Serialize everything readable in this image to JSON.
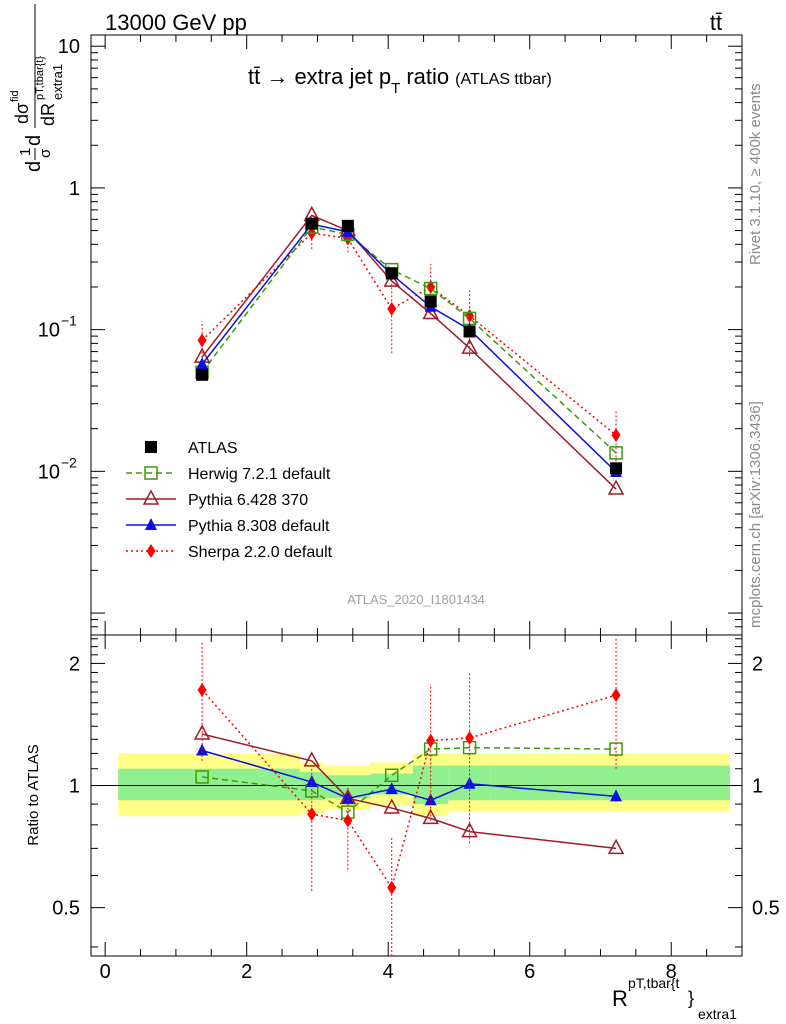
{
  "header": {
    "left": "13000 GeV pp",
    "right": "tt̄"
  },
  "title": {
    "main": "tt̄ → extra jet p",
    "sub": "T",
    "tail": " ratio",
    "small": "(ATLAS ttbar)"
  },
  "side_labels": {
    "rivet": "Rivet 3.1.10, ≥ 400k events",
    "mcplots": "mcplots.cern.ch [arXiv:1306.3436]"
  },
  "watermark": "ATLAS_2020_I1801434",
  "axes": {
    "y_main": {
      "pre": "d",
      "frac_num": "1",
      "frac_den": "σ",
      "d": "d",
      "num": "dσ",
      "num_sup": "fid",
      "den": "dR",
      "den_sup": "pT,tbar{t}",
      "den_sub": "extra1"
    },
    "y_ratio": "Ratio to ATLAS",
    "x": {
      "main": "R",
      "sup": "pT,tbar{t",
      "brace": "}",
      "sub": "extra1"
    }
  },
  "chart_data": [
    {
      "type": "scatter",
      "panel": "main",
      "log_y": true,
      "xlim": [
        -0.2,
        9.0
      ],
      "ylim": [
        0.0007,
        12
      ],
      "x_ticks": [
        0,
        2,
        4,
        6,
        8
      ],
      "y_ticks": [
        {
          "value": 10,
          "label": "10",
          "exp": ""
        },
        {
          "value": 1,
          "label": "1",
          "exp": ""
        },
        {
          "value": 0.1,
          "label": "10",
          "exp": "−1"
        },
        {
          "value": 0.01,
          "label": "10",
          "exp": "−2"
        }
      ],
      "legend_position": "lower-left",
      "series": [
        {
          "name": "ATLAS",
          "key": "atlas",
          "color": "#000000",
          "marker": "square-filled",
          "line": "none",
          "x": [
            1.37,
            2.92,
            3.43,
            4.05,
            4.6,
            5.15,
            7.22
          ],
          "y": [
            0.048,
            0.56,
            0.54,
            0.25,
            0.158,
            0.097,
            0.0105
          ],
          "bin_edges": [
            0.0,
            2.75,
            3.1,
            3.75,
            4.35,
            4.85,
            5.45,
            9.0
          ]
        },
        {
          "name": "Herwig 7.2.1 default",
          "key": "herwig",
          "color": "#3a9a0a",
          "marker": "square-open",
          "line": "dashed",
          "x": [
            1.37,
            2.92,
            3.43,
            4.05,
            4.6,
            5.15,
            7.22
          ],
          "y": [
            0.05,
            0.53,
            0.47,
            0.265,
            0.195,
            0.12,
            0.0135
          ]
        },
        {
          "name": "Pythia 6.428 370",
          "key": "pythia6",
          "color": "#a01a2a",
          "marker": "triangle-open",
          "line": "solid",
          "x": [
            1.37,
            2.92,
            3.43,
            4.05,
            4.6,
            5.15,
            7.22
          ],
          "y": [
            0.064,
            0.64,
            0.5,
            0.22,
            0.13,
            0.074,
            0.0075
          ]
        },
        {
          "name": "Pythia 8.308 default",
          "key": "pythia8",
          "color": "#0a10e0",
          "marker": "triangle-filled",
          "line": "solid",
          "x": [
            1.37,
            2.92,
            3.43,
            4.05,
            4.6,
            5.15,
            7.22
          ],
          "y": [
            0.057,
            0.555,
            0.49,
            0.245,
            0.145,
            0.1,
            0.0099
          ]
        },
        {
          "name": "Sherpa 2.2.0 default",
          "key": "sherpa",
          "color": "#ff0000",
          "marker": "diamond-filled",
          "line": "dotted",
          "x": [
            1.37,
            2.92,
            3.43,
            4.05,
            4.6,
            5.15,
            7.22
          ],
          "y": [
            0.084,
            0.48,
            0.44,
            0.14,
            0.2,
            0.125,
            0.018
          ],
          "err_low": [
            0.052,
            0.37,
            0.35,
            0.068,
            0.13,
            0.065,
            0.011
          ],
          "err_high": [
            0.115,
            0.59,
            0.53,
            0.23,
            0.29,
            0.19,
            0.027
          ]
        }
      ]
    },
    {
      "type": "scatter",
      "panel": "ratio",
      "ylim": [
        0.38,
        2.35
      ],
      "y_mapping": "log",
      "x_ticks": [
        0,
        2,
        4,
        6,
        8
      ],
      "y_ticks": [
        0.5,
        1,
        2
      ],
      "reference_line": 1,
      "band_edges": [
        0.0,
        2.75,
        3.1,
        3.75,
        4.35,
        4.85,
        5.45,
        9.0
      ],
      "band_inner": [
        [
          0.92,
          1.1
        ],
        [
          0.92,
          1.08
        ],
        [
          0.93,
          1.06
        ],
        [
          0.95,
          1.07
        ],
        [
          0.9,
          1.12
        ],
        [
          0.92,
          1.12
        ],
        [
          0.92,
          1.12
        ]
      ],
      "band_outer": [
        [
          0.84,
          1.2
        ],
        [
          0.85,
          1.14
        ],
        [
          0.87,
          1.12
        ],
        [
          0.89,
          1.14
        ],
        [
          0.84,
          1.2
        ],
        [
          0.86,
          1.2
        ],
        [
          0.86,
          1.2
        ]
      ],
      "band_colors": {
        "inner": "#90f090",
        "outer": "#ffff88"
      },
      "series": [
        {
          "key": "herwig",
          "x": [
            1.37,
            2.92,
            3.43,
            4.05,
            4.6,
            5.15,
            7.22
          ],
          "y": [
            1.05,
            0.97,
            0.86,
            1.06,
            1.23,
            1.24,
            1.23
          ]
        },
        {
          "key": "pythia6",
          "x": [
            1.37,
            2.92,
            3.43,
            4.05,
            4.6,
            5.15,
            7.22
          ],
          "y": [
            1.34,
            1.15,
            0.93,
            0.88,
            0.83,
            0.77,
            0.7
          ]
        },
        {
          "key": "pythia8",
          "x": [
            1.37,
            2.92,
            3.43,
            4.05,
            4.6,
            5.15,
            7.22
          ],
          "y": [
            1.22,
            1.02,
            0.93,
            0.98,
            0.92,
            1.01,
            0.94
          ]
        },
        {
          "key": "sherpa",
          "x": [
            1.37,
            2.92,
            3.43,
            4.05,
            4.6,
            5.15,
            7.22
          ],
          "y": [
            1.72,
            0.85,
            0.82,
            0.56,
            1.29,
            1.31,
            1.67
          ],
          "err_low": [
            1.15,
            0.55,
            0.62,
            0.38,
            0.82,
            0.72,
            1.1
          ],
          "err_high": [
            2.25,
            1.1,
            1.0,
            0.75,
            1.78,
            1.9,
            2.3
          ]
        }
      ]
    }
  ]
}
